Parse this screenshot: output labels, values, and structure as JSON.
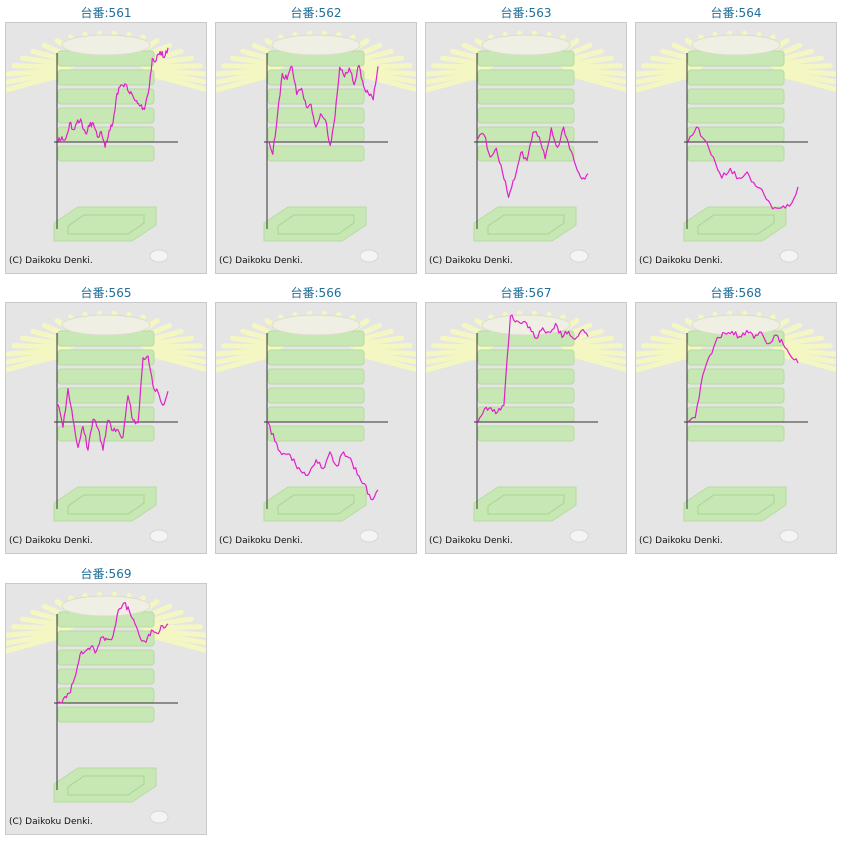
{
  "colors": {
    "title_text": "#1f6f9a",
    "panel_bg": "#e5e5e5",
    "panel_border": "#c9c9c9",
    "graph_line": "#e020c8",
    "axis_line": "#333333",
    "watermark_green": "#c7e8b4",
    "watermark_rays": "#f4f7c2"
  },
  "copyright": "(C) Daikoku Denki.",
  "machines": [
    {
      "title": "台番:561",
      "chart_data": {
        "type": "line",
        "y": [
          0.0,
          0.06,
          0.04,
          0.22,
          0.14,
          0.25,
          0.23,
          0.1,
          0.18,
          0.21,
          0.06,
          0.12,
          -0.06,
          0.13,
          0.22,
          0.55,
          0.65,
          0.66,
          0.57,
          0.53,
          0.47,
          0.41,
          0.37,
          0.56,
          0.95,
          0.93,
          1.03,
          0.96,
          1.07
        ]
      }
    },
    {
      "title": "台番:562",
      "chart_data": {
        "type": "line",
        "y": [
          0.0,
          -0.14,
          0.32,
          0.78,
          0.71,
          0.86,
          0.54,
          0.61,
          0.4,
          0.43,
          0.17,
          0.32,
          0.25,
          -0.04,
          0.29,
          0.85,
          0.74,
          0.84,
          0.65,
          0.87,
          0.63,
          0.55,
          0.48,
          0.86
        ]
      }
    },
    {
      "title": "台番:563",
      "chart_data": {
        "type": "line",
        "y": [
          0.04,
          0.08,
          -0.17,
          -0.07,
          -0.34,
          -0.63,
          -0.42,
          -0.12,
          -0.21,
          0.11,
          0.06,
          -0.19,
          0.16,
          -0.06,
          0.17,
          -0.08,
          -0.27,
          -0.42,
          -0.36
        ]
      }
    },
    {
      "title": "台番:564",
      "chart_data": {
        "type": "line",
        "y": [
          0.0,
          0.17,
          0.02,
          -0.17,
          -0.41,
          -0.3,
          -0.41,
          -0.34,
          -0.5,
          -0.6,
          -0.76,
          -0.75,
          -0.73,
          -0.51
        ]
      }
    },
    {
      "title": "台番:565",
      "chart_data": {
        "type": "line",
        "y": [
          0.2,
          -0.06,
          0.38,
          0.03,
          -0.29,
          -0.05,
          -0.32,
          0.03,
          -0.07,
          -0.32,
          0.02,
          -0.1,
          -0.09,
          -0.17,
          0.3,
          0.02,
          -0.01,
          0.73,
          0.75,
          0.41,
          0.34,
          0.19,
          0.35
        ]
      }
    },
    {
      "title": "台番:566",
      "chart_data": {
        "type": "line",
        "y": [
          0.0,
          -0.22,
          -0.37,
          -0.36,
          -0.48,
          -0.58,
          -0.58,
          -0.43,
          -0.53,
          -0.34,
          -0.5,
          -0.34,
          -0.41,
          -0.6,
          -0.7,
          -0.88,
          -0.77
        ]
      }
    },
    {
      "title": "台番:567",
      "chart_data": {
        "type": "line",
        "y": [
          0.0,
          0.15,
          0.16,
          0.11,
          0.19,
          1.2,
          1.15,
          1.14,
          1.08,
          0.95,
          1.07,
          1.02,
          1.12,
          0.96,
          1.03,
          0.94,
          1.04,
          0.97
        ]
      }
    },
    {
      "title": "台番:568",
      "chart_data": {
        "type": "line",
        "y": [
          0.0,
          0.05,
          0.53,
          0.76,
          0.96,
          1.01,
          1.03,
          0.97,
          1.04,
          0.95,
          1.02,
          0.89,
          0.99,
          0.88,
          0.75,
          0.67
        ]
      }
    },
    {
      "title": "台番:569",
      "chart_data": {
        "type": "line",
        "y": [
          0.0,
          0.05,
          0.11,
          0.28,
          0.55,
          0.59,
          0.64,
          0.59,
          0.75,
          0.72,
          0.76,
          1.06,
          1.14,
          1.04,
          0.9,
          0.73,
          0.69,
          0.83,
          0.79,
          0.88,
          0.9
        ]
      }
    }
  ]
}
